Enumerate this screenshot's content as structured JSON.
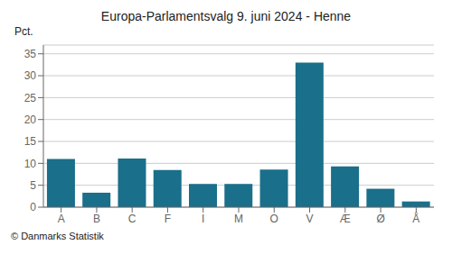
{
  "chart_data": {
    "type": "bar",
    "title": "Europa-Parlamentsvalg 9. juni 2024 - Henne",
    "ylabel": "Pct.",
    "annotations": [
      "© Danmarks Statistik"
    ],
    "categories": [
      "A",
      "B",
      "C",
      "F",
      "I",
      "M",
      "O",
      "V",
      "Æ",
      "Ø",
      "Å"
    ],
    "values": [
      11.0,
      3.3,
      11.1,
      8.5,
      5.3,
      5.3,
      8.6,
      33.0,
      9.3,
      4.2,
      1.3
    ],
    "color": "#1a6f8a",
    "ylim": [
      0,
      37
    ],
    "yticks": [
      0,
      5,
      10,
      15,
      20,
      25,
      30,
      35
    ],
    "grid": true
  }
}
